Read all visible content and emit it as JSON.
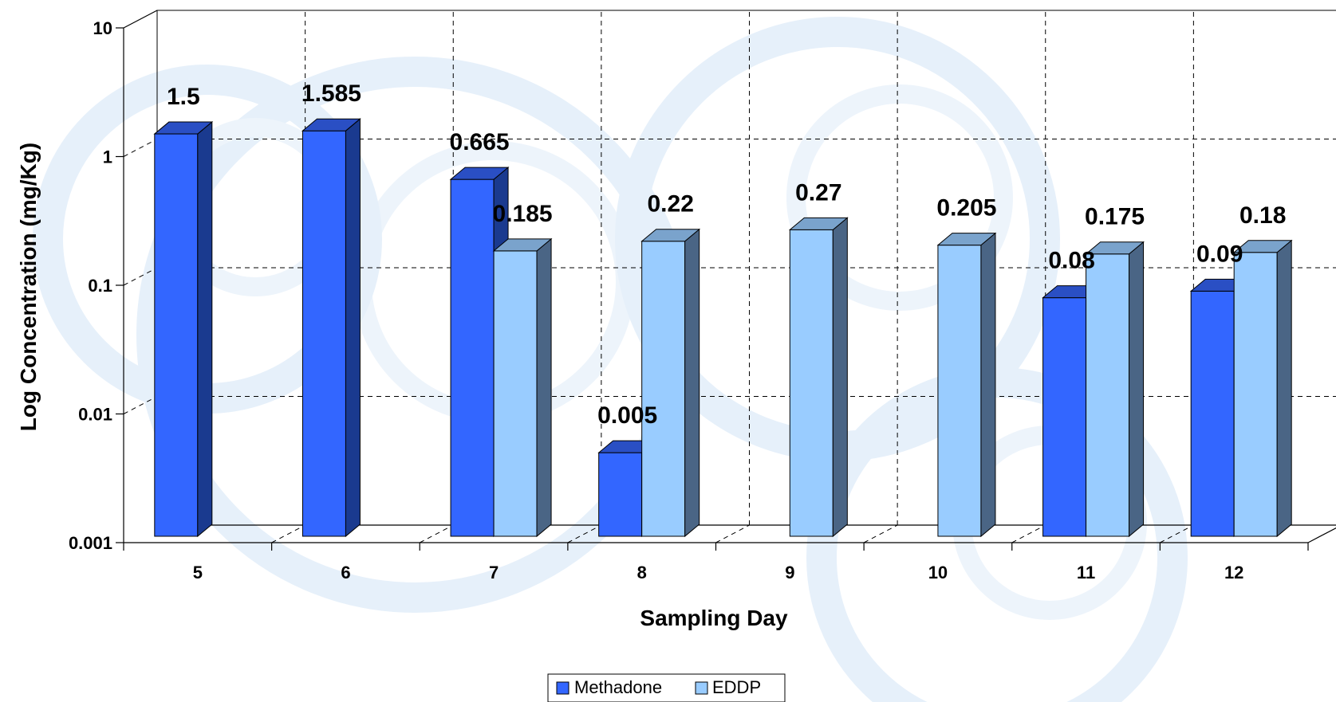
{
  "chart_data": {
    "type": "bar",
    "categories": [
      "5",
      "6",
      "7",
      "8",
      "9",
      "10",
      "11",
      "12"
    ],
    "series": [
      {
        "name": "Methadone",
        "color": "#3366FF",
        "values": [
          1.5,
          1.585,
          0.665,
          0.005,
          null,
          null,
          0.08,
          0.09
        ]
      },
      {
        "name": "EDDP",
        "color": "#99CCFF",
        "values": [
          null,
          null,
          0.185,
          0.22,
          0.27,
          0.205,
          0.175,
          0.18
        ]
      }
    ],
    "data_labels": [
      [
        "1.5",
        "1.585",
        "0.665",
        "0.005",
        "",
        "",
        "0.08",
        "0.09"
      ],
      [
        "",
        "",
        "0.185",
        "0.22",
        "0.27",
        "0.205",
        "0.175",
        "0.18"
      ]
    ],
    "xlabel": "Sampling Day",
    "ylabel": "Log Concentration (mg/Kg)",
    "yscale": "log",
    "ylim": [
      0.001,
      10
    ],
    "yticks": [
      {
        "value": 10,
        "label": "10"
      },
      {
        "value": 1,
        "label": "1"
      },
      {
        "value": 0.1,
        "label": "0.1"
      },
      {
        "value": 0.01,
        "label": "0.01"
      },
      {
        "value": 0.001,
        "label": "0.001"
      }
    ],
    "grid": true,
    "legend_position": "bottom-center",
    "style": "3d-clustered-column"
  }
}
